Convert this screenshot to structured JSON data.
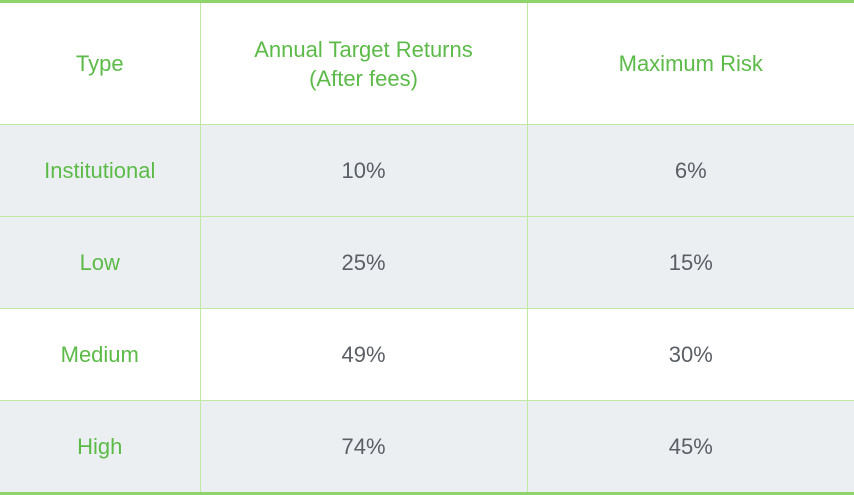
{
  "table": {
    "header": [
      "Type",
      "Annual Target Returns (After fees)",
      "Maximum Risk"
    ],
    "rows": [
      [
        "Institutional",
        "10%",
        "6%"
      ],
      [
        "Low",
        "25%",
        "15%"
      ],
      [
        "Medium",
        "49%",
        "30%"
      ],
      [
        "High",
        "74%",
        "45%"
      ]
    ]
  }
}
